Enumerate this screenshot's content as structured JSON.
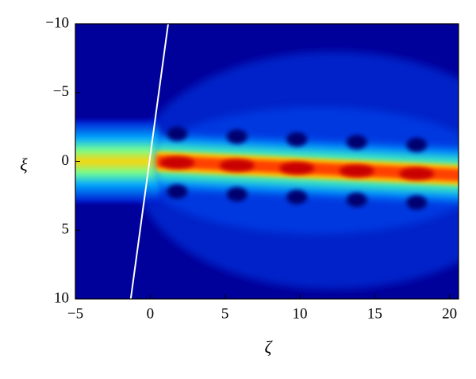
{
  "chart_data": {
    "type": "heatmap",
    "x_label": "ζ",
    "y_label": "ξ",
    "xlim": [
      -5,
      20.6
    ],
    "ylim": [
      10,
      -10
    ],
    "xticks": [
      {
        "value": -5,
        "label": "−5"
      },
      0,
      5,
      10,
      15,
      20
    ],
    "yticks": [
      {
        "value": -10,
        "label": "−10"
      },
      {
        "value": -5,
        "label": "−5"
      },
      0,
      5,
      10
    ],
    "peaks": {
      "x": [
        1.8,
        5.8,
        9.8,
        13.8,
        17.8
      ],
      "y": [
        0.1,
        0.3,
        0.5,
        0.7,
        0.9
      ],
      "color": "#c80000"
    },
    "line": {
      "x": [
        -1.3,
        1.2
      ],
      "y": [
        10,
        -10
      ],
      "color": "#ffffff"
    }
  }
}
